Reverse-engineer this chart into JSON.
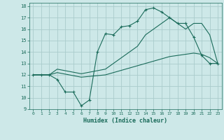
{
  "xlabel": "Humidex (Indice chaleur)",
  "background_color": "#cde8e8",
  "grid_color": "#aacccc",
  "line_color": "#1a6b5a",
  "xlim": [
    -0.5,
    23.5
  ],
  "ylim": [
    9,
    18.3
  ],
  "xticks": [
    0,
    1,
    2,
    3,
    4,
    5,
    6,
    7,
    8,
    9,
    10,
    11,
    12,
    13,
    14,
    15,
    16,
    17,
    18,
    19,
    20,
    21,
    22,
    23
  ],
  "yticks": [
    9,
    10,
    11,
    12,
    13,
    14,
    15,
    16,
    17,
    18
  ],
  "line1_x": [
    0,
    1,
    2,
    3,
    4,
    5,
    6,
    7,
    8,
    9,
    10,
    11,
    12,
    13,
    14,
    15,
    16,
    17,
    18,
    19,
    20,
    21,
    22,
    23
  ],
  "line1_y": [
    12.0,
    12.0,
    12.0,
    11.6,
    10.5,
    10.5,
    9.3,
    9.8,
    14.0,
    15.6,
    15.5,
    16.2,
    16.3,
    16.7,
    17.7,
    17.85,
    17.5,
    17.0,
    16.5,
    16.5,
    15.3,
    13.7,
    13.0,
    13.0
  ],
  "line2_x": [
    0,
    1,
    2,
    3,
    6,
    9,
    10,
    11,
    12,
    13,
    14,
    15,
    16,
    17,
    18,
    19,
    20,
    21,
    22,
    23
  ],
  "line2_y": [
    12.0,
    12.0,
    12.0,
    12.2,
    11.8,
    12.0,
    12.2,
    12.4,
    12.6,
    12.8,
    13.0,
    13.2,
    13.4,
    13.6,
    13.7,
    13.8,
    13.9,
    13.8,
    13.5,
    13.0
  ],
  "line3_x": [
    0,
    1,
    2,
    3,
    6,
    9,
    10,
    11,
    12,
    13,
    14,
    15,
    16,
    17,
    18,
    19,
    20,
    21,
    22,
    23
  ],
  "line3_y": [
    12.0,
    12.0,
    12.0,
    12.5,
    12.1,
    12.5,
    13.0,
    13.5,
    14.0,
    14.5,
    15.5,
    16.0,
    16.5,
    17.0,
    16.5,
    16.0,
    16.5,
    16.5,
    15.5,
    13.0
  ],
  "figsize": [
    3.2,
    2.0
  ],
  "dpi": 100
}
